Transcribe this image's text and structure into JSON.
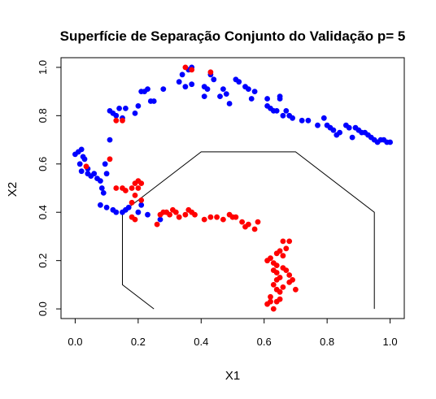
{
  "chart_data": {
    "type": "scatter",
    "title": "Superfície de Separação Conjunto do Validação p= 5",
    "xlabel": "X1",
    "ylabel": "X2",
    "xlim": [
      -0.045,
      1.045
    ],
    "ylim": [
      -0.04,
      1.04
    ],
    "xticks": [
      "0.0",
      "0.2",
      "0.4",
      "0.6",
      "0.8",
      "1.0"
    ],
    "yticks": [
      "0.0",
      "0.2",
      "0.4",
      "0.6",
      "0.8",
      "1.0"
    ],
    "grid": false,
    "colors": {
      "class_blue": "#0000ff",
      "class_red": "#ff0000",
      "boundary": "#000000"
    },
    "boundary": {
      "x": [
        0.25,
        0.15,
        0.15,
        0.25,
        0.4,
        0.7,
        0.95,
        0.95
      ],
      "y": [
        0.0,
        0.1,
        0.4,
        0.5,
        0.65,
        0.65,
        0.4,
        0.0
      ]
    },
    "series": [
      {
        "color": "#0000ff",
        "points": [
          [
            0.0,
            0.64
          ],
          [
            0.01,
            0.65
          ],
          [
            0.02,
            0.66
          ],
          [
            0.025,
            0.63
          ],
          [
            0.015,
            0.6
          ],
          [
            0.03,
            0.62
          ],
          [
            0.02,
            0.57
          ],
          [
            0.04,
            0.56
          ],
          [
            0.05,
            0.55
          ],
          [
            0.06,
            0.56
          ],
          [
            0.04,
            0.58
          ],
          [
            0.07,
            0.54
          ],
          [
            0.08,
            0.53
          ],
          [
            0.085,
            0.5
          ],
          [
            0.09,
            0.48
          ],
          [
            0.095,
            0.6
          ],
          [
            0.1,
            0.56
          ],
          [
            0.08,
            0.43
          ],
          [
            0.1,
            0.42
          ],
          [
            0.12,
            0.41
          ],
          [
            0.13,
            0.4
          ],
          [
            0.15,
            0.4
          ],
          [
            0.16,
            0.41
          ],
          [
            0.17,
            0.42
          ],
          [
            0.21,
            0.43
          ],
          [
            0.23,
            0.39
          ],
          [
            0.27,
            0.37
          ],
          [
            0.2,
            0.4
          ],
          [
            0.11,
            0.7
          ],
          [
            0.11,
            0.82
          ],
          [
            0.12,
            0.81
          ],
          [
            0.13,
            0.8
          ],
          [
            0.14,
            0.83
          ],
          [
            0.15,
            0.79
          ],
          [
            0.16,
            0.83
          ],
          [
            0.19,
            0.81
          ],
          [
            0.2,
            0.84
          ],
          [
            0.21,
            0.9
          ],
          [
            0.22,
            0.9
          ],
          [
            0.23,
            0.91
          ],
          [
            0.24,
            0.86
          ],
          [
            0.25,
            0.86
          ],
          [
            0.28,
            0.91
          ],
          [
            0.33,
            0.94
          ],
          [
            0.34,
            0.97
          ],
          [
            0.35,
            0.92
          ],
          [
            0.36,
            0.99
          ],
          [
            0.37,
            1.0
          ],
          [
            0.37,
            0.93
          ],
          [
            0.41,
            0.92
          ],
          [
            0.41,
            0.88
          ],
          [
            0.42,
            0.91
          ],
          [
            0.43,
            0.97
          ],
          [
            0.44,
            0.95
          ],
          [
            0.46,
            0.88
          ],
          [
            0.47,
            0.91
          ],
          [
            0.48,
            0.89
          ],
          [
            0.49,
            0.85
          ],
          [
            0.51,
            0.95
          ],
          [
            0.52,
            0.94
          ],
          [
            0.54,
            0.92
          ],
          [
            0.55,
            0.91
          ],
          [
            0.56,
            0.87
          ],
          [
            0.57,
            0.9
          ],
          [
            0.61,
            0.87
          ],
          [
            0.61,
            0.84
          ],
          [
            0.62,
            0.83
          ],
          [
            0.63,
            0.82
          ],
          [
            0.64,
            0.82
          ],
          [
            0.65,
            0.87
          ],
          [
            0.65,
            0.88
          ],
          [
            0.66,
            0.8
          ],
          [
            0.67,
            0.82
          ],
          [
            0.68,
            0.8
          ],
          [
            0.69,
            0.79
          ],
          [
            0.72,
            0.78
          ],
          [
            0.74,
            0.78
          ],
          [
            0.77,
            0.76
          ],
          [
            0.79,
            0.79
          ],
          [
            0.8,
            0.76
          ],
          [
            0.81,
            0.75
          ],
          [
            0.82,
            0.74
          ],
          [
            0.83,
            0.72
          ],
          [
            0.84,
            0.73
          ],
          [
            0.86,
            0.76
          ],
          [
            0.87,
            0.75
          ],
          [
            0.88,
            0.71
          ],
          [
            0.89,
            0.75
          ],
          [
            0.9,
            0.74
          ],
          [
            0.91,
            0.73
          ],
          [
            0.92,
            0.73
          ],
          [
            0.93,
            0.72
          ],
          [
            0.94,
            0.71
          ],
          [
            0.95,
            0.7
          ],
          [
            0.96,
            0.69
          ],
          [
            0.97,
            0.7
          ],
          [
            0.98,
            0.7
          ],
          [
            0.99,
            0.69
          ],
          [
            1.0,
            0.69
          ]
        ]
      },
      {
        "color": "#ff0000",
        "points": [
          [
            0.035,
            0.59
          ],
          [
            0.11,
            0.62
          ],
          [
            0.13,
            0.78
          ],
          [
            0.15,
            0.78
          ],
          [
            0.35,
            1.0
          ],
          [
            0.37,
            0.99
          ],
          [
            0.43,
            0.98
          ],
          [
            0.13,
            0.5
          ],
          [
            0.15,
            0.5
          ],
          [
            0.16,
            0.49
          ],
          [
            0.18,
            0.5
          ],
          [
            0.19,
            0.52
          ],
          [
            0.2,
            0.53
          ],
          [
            0.21,
            0.52
          ],
          [
            0.2,
            0.5
          ],
          [
            0.19,
            0.47
          ],
          [
            0.21,
            0.45
          ],
          [
            0.18,
            0.44
          ],
          [
            0.18,
            0.38
          ],
          [
            0.19,
            0.37
          ],
          [
            0.26,
            0.35
          ],
          [
            0.27,
            0.39
          ],
          [
            0.28,
            0.4
          ],
          [
            0.29,
            0.4
          ],
          [
            0.3,
            0.39
          ],
          [
            0.31,
            0.41
          ],
          [
            0.32,
            0.4
          ],
          [
            0.33,
            0.38
          ],
          [
            0.35,
            0.39
          ],
          [
            0.36,
            0.41
          ],
          [
            0.37,
            0.4
          ],
          [
            0.38,
            0.39
          ],
          [
            0.41,
            0.37
          ],
          [
            0.43,
            0.38
          ],
          [
            0.45,
            0.38
          ],
          [
            0.47,
            0.37
          ],
          [
            0.49,
            0.39
          ],
          [
            0.5,
            0.38
          ],
          [
            0.51,
            0.38
          ],
          [
            0.53,
            0.36
          ],
          [
            0.54,
            0.34
          ],
          [
            0.55,
            0.35
          ],
          [
            0.57,
            0.33
          ],
          [
            0.58,
            0.36
          ],
          [
            0.61,
            0.2
          ],
          [
            0.62,
            0.21
          ],
          [
            0.63,
            0.19
          ],
          [
            0.64,
            0.18
          ],
          [
            0.64,
            0.23
          ],
          [
            0.64,
            0.15
          ],
          [
            0.65,
            0.24
          ],
          [
            0.65,
            0.13
          ],
          [
            0.66,
            0.22
          ],
          [
            0.66,
            0.17
          ],
          [
            0.66,
            0.28
          ],
          [
            0.67,
            0.25
          ],
          [
            0.67,
            0.16
          ],
          [
            0.68,
            0.28
          ],
          [
            0.68,
            0.14
          ],
          [
            0.68,
            0.11
          ],
          [
            0.69,
            0.12
          ],
          [
            0.7,
            0.08
          ],
          [
            0.63,
            0.1
          ],
          [
            0.64,
            0.08
          ],
          [
            0.65,
            0.07
          ],
          [
            0.62,
            0.05
          ],
          [
            0.61,
            0.02
          ],
          [
            0.62,
            0.03
          ],
          [
            0.63,
            0.0
          ],
          [
            0.64,
            0.03
          ],
          [
            0.65,
            0.04
          ],
          [
            0.66,
            0.09
          ],
          [
            0.64,
            0.12
          ],
          [
            0.63,
            0.16
          ]
        ]
      }
    ]
  }
}
